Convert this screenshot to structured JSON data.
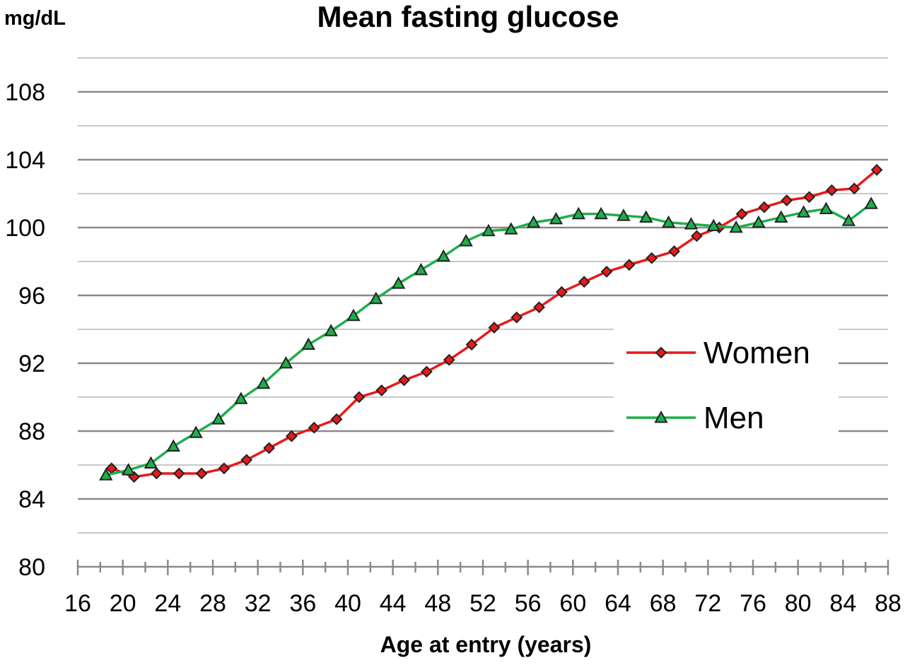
{
  "chart_data": {
    "type": "line",
    "title": "Mean fasting glucose",
    "ylabel": "mg/dL",
    "xlabel": "Age at entry (years)",
    "xlim": [
      16,
      88
    ],
    "ylim": [
      80,
      110
    ],
    "x_ticks": [
      16,
      20,
      24,
      28,
      32,
      36,
      40,
      44,
      48,
      52,
      56,
      60,
      64,
      68,
      72,
      76,
      80,
      84,
      88
    ],
    "y_ticks": [
      80,
      84,
      88,
      92,
      96,
      100,
      104,
      108
    ],
    "y_gridlines": [
      82,
      84,
      86,
      88,
      90,
      92,
      94,
      96,
      98,
      100,
      102,
      104,
      106,
      108,
      110
    ],
    "legend_position": "right",
    "series": [
      {
        "name": "Women",
        "color": "#e8191b",
        "marker": "diamond",
        "x": [
          19,
          21,
          23,
          25,
          27,
          29,
          31,
          33,
          35,
          37,
          39,
          41,
          43,
          45,
          47,
          49,
          51,
          53,
          55,
          57,
          59,
          61,
          63,
          65,
          67,
          69,
          71,
          73,
          75,
          77,
          79,
          81,
          83,
          85,
          87
        ],
        "values": [
          85.8,
          85.3,
          85.5,
          85.5,
          85.5,
          85.8,
          86.3,
          87.0,
          87.7,
          88.2,
          88.7,
          90.0,
          90.4,
          91.0,
          91.5,
          92.2,
          93.1,
          94.1,
          94.7,
          95.3,
          96.2,
          96.8,
          97.4,
          97.8,
          98.2,
          98.6,
          99.5,
          100.0,
          100.8,
          101.2,
          101.6,
          101.8,
          102.2,
          102.3,
          103.4
        ]
      },
      {
        "name": "Men",
        "color": "#1fae4b",
        "marker": "triangle",
        "x": [
          18.5,
          20.5,
          22.5,
          24.5,
          26.5,
          28.5,
          30.5,
          32.5,
          34.5,
          36.5,
          38.5,
          40.5,
          42.5,
          44.5,
          46.5,
          48.5,
          50.5,
          52.5,
          54.5,
          56.5,
          58.5,
          60.5,
          62.5,
          64.5,
          66.5,
          68.5,
          70.5,
          72.5,
          74.5,
          76.5,
          78.5,
          80.5,
          82.5,
          84.5,
          86.5
        ],
        "values": [
          85.4,
          85.7,
          86.1,
          87.1,
          87.9,
          88.7,
          89.9,
          90.8,
          92.0,
          93.1,
          93.9,
          94.8,
          95.8,
          96.7,
          97.5,
          98.3,
          99.2,
          99.8,
          99.9,
          100.3,
          100.5,
          100.8,
          100.8,
          100.7,
          100.6,
          100.3,
          100.2,
          100.1,
          100.0,
          100.3,
          100.6,
          100.9,
          101.1,
          100.4,
          101.4
        ]
      }
    ]
  }
}
